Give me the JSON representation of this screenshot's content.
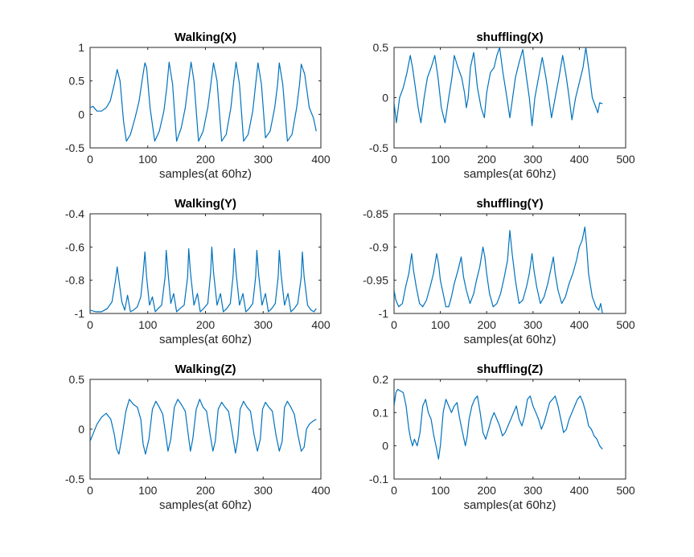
{
  "chart_data": [
    {
      "type": "line",
      "title": "Walking(X)",
      "xlabel": "samples(at 60hz)",
      "ylabel": "",
      "xlim": [
        0,
        400
      ],
      "ylim": [
        -0.5,
        1
      ],
      "xticks": [
        0,
        100,
        200,
        300,
        400
      ],
      "xtick_labels": [
        "0",
        "100",
        "200",
        "300",
        "400"
      ],
      "yticks": [
        1,
        0.5,
        0,
        -0.5
      ],
      "ytick_labels": [
        "1",
        "0.5",
        "0",
        "-0.5"
      ],
      "grid": false,
      "series": [
        {
          "color": "#0072BD",
          "x": [
            0,
            5,
            12,
            20,
            28,
            35,
            42,
            47,
            52,
            58,
            63,
            70,
            78,
            85,
            90,
            95,
            98,
            104,
            112,
            120,
            128,
            133,
            137,
            143,
            150,
            158,
            165,
            170,
            175,
            180,
            188,
            196,
            204,
            210,
            214,
            220,
            228,
            236,
            244,
            249,
            253,
            259,
            266,
            274,
            282,
            287,
            291,
            297,
            304,
            312,
            320,
            325,
            328,
            334,
            342,
            350,
            358,
            363,
            366,
            372,
            380,
            387,
            392
          ],
          "y": [
            0.1,
            0.12,
            0.05,
            0.05,
            0.1,
            0.2,
            0.45,
            0.67,
            0.5,
            -0.1,
            -0.4,
            -0.3,
            -0.05,
            0.2,
            0.5,
            0.77,
            0.7,
            0.1,
            -0.4,
            -0.25,
            0.05,
            0.4,
            0.78,
            0.45,
            -0.4,
            -0.2,
            0.1,
            0.45,
            0.78,
            0.5,
            -0.4,
            -0.25,
            0.1,
            0.5,
            0.77,
            0.5,
            -0.4,
            -0.3,
            0.1,
            0.5,
            0.78,
            0.45,
            -0.4,
            -0.3,
            0.05,
            0.45,
            0.77,
            0.45,
            -0.35,
            -0.25,
            0.1,
            0.45,
            0.77,
            0.45,
            -0.4,
            -0.3,
            0.1,
            0.45,
            0.75,
            0.6,
            0.1,
            -0.05,
            -0.25
          ]
        }
      ]
    },
    {
      "type": "line",
      "title": "shuffling(X)",
      "xlabel": "samples(at 60hz)",
      "ylabel": "",
      "xlim": [
        0,
        500
      ],
      "ylim": [
        -0.5,
        0.5
      ],
      "xticks": [
        0,
        100,
        200,
        300,
        400,
        500
      ],
      "xtick_labels": [
        "0",
        "100",
        "200",
        "300",
        "400",
        "500"
      ],
      "yticks": [
        0.5,
        0,
        -0.5
      ],
      "ytick_labels": [
        "0.5",
        "0",
        "-0.5"
      ],
      "grid": false,
      "series": [
        {
          "color": "#0072BD",
          "x": [
            0,
            5,
            12,
            20,
            28,
            35,
            40,
            46,
            52,
            58,
            65,
            72,
            80,
            88,
            95,
            102,
            110,
            118,
            125,
            130,
            138,
            146,
            152,
            156,
            160,
            165,
            172,
            180,
            188,
            195,
            200,
            208,
            216,
            222,
            228,
            235,
            242,
            250,
            256,
            262,
            270,
            278,
            286,
            292,
            298,
            304,
            312,
            320,
            328,
            334,
            340,
            348,
            356,
            364,
            372,
            378,
            384,
            392,
            400,
            408,
            414,
            420,
            428,
            436,
            440,
            444,
            450
          ],
          "y": [
            -0.05,
            -0.25,
            0,
            0.1,
            0.25,
            0.42,
            0.3,
            0.1,
            -0.1,
            -0.25,
            0.0,
            0.2,
            0.3,
            0.42,
            0.2,
            -0.1,
            -0.25,
            0.0,
            0.2,
            0.42,
            0.3,
            0.2,
            0.05,
            -0.1,
            0.0,
            0.3,
            0.45,
            0.1,
            -0.1,
            -0.2,
            0.05,
            0.25,
            0.3,
            0.42,
            0.5,
            0.25,
            0.05,
            -0.2,
            0.0,
            0.2,
            0.35,
            0.48,
            0.2,
            0.0,
            -0.28,
            0.0,
            0.2,
            0.4,
            0.2,
            0.0,
            -0.2,
            0.0,
            0.2,
            0.42,
            0.2,
            0.0,
            -0.22,
            0.0,
            0.15,
            0.3,
            0.5,
            0.3,
            0.0,
            -0.1,
            -0.15,
            -0.05,
            -0.06
          ]
        }
      ]
    },
    {
      "type": "line",
      "title": "Walking(Y)",
      "xlabel": "samples(at 60hz)",
      "ylabel": "",
      "xlim": [
        0,
        400
      ],
      "ylim": [
        -1,
        -0.4
      ],
      "xticks": [
        0,
        100,
        200,
        300,
        400
      ],
      "xtick_labels": [
        "0",
        "100",
        "200",
        "300",
        "400"
      ],
      "yticks": [
        -0.4,
        -0.6,
        -0.8,
        -1
      ],
      "ytick_labels": [
        "-0.4",
        "-0.6",
        "-0.8",
        "-1"
      ],
      "grid": false,
      "series": [
        {
          "color": "#0072BD",
          "x": [
            0,
            10,
            20,
            30,
            38,
            44,
            47,
            50,
            55,
            60,
            65,
            70,
            75,
            82,
            88,
            92,
            95,
            98,
            103,
            108,
            113,
            118,
            124,
            130,
            132,
            135,
            140,
            145,
            150,
            156,
            163,
            169,
            171,
            174,
            180,
            186,
            191,
            197,
            204,
            209,
            211,
            214,
            220,
            226,
            231,
            237,
            243,
            248,
            250,
            253,
            259,
            265,
            270,
            276,
            282,
            287,
            289,
            292,
            298,
            304,
            309,
            315,
            321,
            326,
            328,
            331,
            337,
            343,
            348,
            354,
            360,
            366,
            368,
            371,
            377,
            383,
            388,
            392
          ],
          "y": [
            -0.98,
            -0.99,
            -0.99,
            -0.97,
            -0.93,
            -0.8,
            -0.72,
            -0.8,
            -0.93,
            -0.98,
            -0.89,
            -0.99,
            -0.98,
            -0.96,
            -0.9,
            -0.76,
            -0.63,
            -0.78,
            -0.95,
            -0.9,
            -0.99,
            -0.97,
            -0.95,
            -0.78,
            -0.62,
            -0.75,
            -0.94,
            -0.88,
            -0.99,
            -0.97,
            -0.95,
            -0.78,
            -0.61,
            -0.75,
            -0.95,
            -0.88,
            -0.99,
            -0.97,
            -0.94,
            -0.75,
            -0.6,
            -0.75,
            -0.95,
            -0.88,
            -0.99,
            -0.97,
            -0.94,
            -0.77,
            -0.61,
            -0.75,
            -0.95,
            -0.88,
            -0.99,
            -0.97,
            -0.94,
            -0.78,
            -0.62,
            -0.76,
            -0.95,
            -0.88,
            -0.99,
            -0.97,
            -0.94,
            -0.78,
            -0.62,
            -0.76,
            -0.95,
            -0.88,
            -0.99,
            -0.97,
            -0.94,
            -0.78,
            -0.63,
            -0.78,
            -0.95,
            -0.98,
            -0.99,
            -0.97
          ]
        }
      ]
    },
    {
      "type": "line",
      "title": "shuffling(Y)",
      "xlabel": "samples(at 60hz)",
      "ylabel": "",
      "xlim": [
        0,
        500
      ],
      "ylim": [
        -1,
        -0.85
      ],
      "xticks": [
        0,
        100,
        200,
        300,
        400,
        500
      ],
      "xtick_labels": [
        "0",
        "100",
        "200",
        "300",
        "400",
        "500"
      ],
      "yticks": [
        -0.85,
        -0.9,
        -0.95,
        -1
      ],
      "ytick_labels": [
        "-0.85",
        "-0.9",
        "-0.95",
        "-1"
      ],
      "grid": false,
      "series": [
        {
          "color": "#0072BD",
          "x": [
            0,
            4,
            10,
            18,
            25,
            32,
            38,
            42,
            48,
            55,
            62,
            70,
            78,
            85,
            92,
            96,
            100,
            106,
            112,
            118,
            124,
            130,
            138,
            145,
            150,
            156,
            164,
            172,
            178,
            185,
            192,
            196,
            200,
            206,
            214,
            222,
            230,
            238,
            245,
            250,
            255,
            262,
            270,
            278,
            286,
            292,
            298,
            302,
            308,
            316,
            324,
            332,
            338,
            344,
            348,
            354,
            362,
            370,
            378,
            386,
            394,
            400,
            406,
            412,
            416,
            420,
            428,
            436,
            442,
            446,
            450
          ],
          "y": [
            -0.965,
            -0.98,
            -0.99,
            -0.985,
            -0.96,
            -0.94,
            -0.91,
            -0.935,
            -0.96,
            -0.985,
            -0.99,
            -0.98,
            -0.96,
            -0.94,
            -0.91,
            -0.925,
            -0.95,
            -0.97,
            -0.99,
            -0.99,
            -0.975,
            -0.955,
            -0.935,
            -0.915,
            -0.945,
            -0.965,
            -0.985,
            -0.97,
            -0.95,
            -0.93,
            -0.9,
            -0.915,
            -0.94,
            -0.97,
            -0.99,
            -0.985,
            -0.97,
            -0.945,
            -0.92,
            -0.875,
            -0.91,
            -0.95,
            -0.985,
            -0.98,
            -0.96,
            -0.94,
            -0.91,
            -0.935,
            -0.96,
            -0.985,
            -0.975,
            -0.955,
            -0.935,
            -0.915,
            -0.94,
            -0.965,
            -0.985,
            -0.975,
            -0.955,
            -0.94,
            -0.92,
            -0.9,
            -0.89,
            -0.87,
            -0.9,
            -0.94,
            -0.975,
            -0.99,
            -0.995,
            -0.985,
            -1.0
          ]
        }
      ]
    },
    {
      "type": "line",
      "title": "Walking(Z)",
      "xlabel": "samples(at 60hz)",
      "ylabel": "",
      "xlim": [
        0,
        400
      ],
      "ylim": [
        -0.5,
        0.5
      ],
      "xticks": [
        0,
        100,
        200,
        300,
        400
      ],
      "xtick_labels": [
        "0",
        "100",
        "200",
        "300",
        "400"
      ],
      "yticks": [
        0.5,
        0,
        -0.5
      ],
      "ytick_labels": [
        "0.5",
        "0",
        "-0.5"
      ],
      "grid": false,
      "series": [
        {
          "color": "#0072BD",
          "x": [
            0,
            5,
            12,
            20,
            28,
            36,
            42,
            46,
            50,
            56,
            62,
            68,
            75,
            82,
            88,
            92,
            96,
            102,
            108,
            114,
            120,
            126,
            131,
            135,
            140,
            146,
            152,
            158,
            165,
            170,
            174,
            178,
            184,
            190,
            196,
            202,
            208,
            213,
            217,
            222,
            228,
            234,
            240,
            246,
            252,
            256,
            260,
            266,
            272,
            278,
            284,
            290,
            295,
            299,
            304,
            310,
            316,
            322,
            328,
            333,
            337,
            342,
            348,
            354,
            360,
            366,
            371,
            375,
            380,
            386,
            392
          ],
          "y": [
            -0.12,
            -0.05,
            0.05,
            0.12,
            0.16,
            0.1,
            -0.05,
            -0.2,
            -0.25,
            -0.05,
            0.18,
            0.3,
            0.25,
            0.22,
            0.1,
            -0.15,
            -0.25,
            -0.1,
            0.2,
            0.28,
            0.22,
            0.15,
            -0.05,
            -0.22,
            -0.1,
            0.22,
            0.3,
            0.25,
            0.18,
            -0.05,
            -0.22,
            -0.1,
            0.2,
            0.3,
            0.22,
            0.18,
            -0.05,
            -0.22,
            -0.12,
            0.2,
            0.27,
            0.22,
            0.18,
            -0.02,
            -0.24,
            -0.1,
            0.2,
            0.28,
            0.22,
            0.18,
            -0.05,
            -0.22,
            -0.1,
            0.2,
            0.27,
            0.22,
            0.18,
            -0.05,
            -0.22,
            -0.12,
            0.22,
            0.28,
            0.22,
            0.15,
            -0.05,
            -0.22,
            -0.18,
            0.0,
            0.05,
            0.08,
            0.1
          ]
        }
      ]
    },
    {
      "type": "line",
      "title": "shuffling(Z)",
      "xlabel": "samples(at 60hz)",
      "ylabel": "",
      "xlim": [
        0,
        500
      ],
      "ylim": [
        -0.1,
        0.2
      ],
      "xticks": [
        0,
        100,
        200,
        300,
        400,
        500
      ],
      "xtick_labels": [
        "0",
        "100",
        "200",
        "300",
        "400",
        "500"
      ],
      "yticks": [
        0.2,
        0.1,
        0,
        -0.1
      ],
      "ytick_labels": [
        "0.2",
        "0.1",
        "0",
        "-0.1"
      ],
      "grid": false,
      "series": [
        {
          "color": "#0072BD",
          "x": [
            0,
            4,
            8,
            14,
            20,
            26,
            32,
            36,
            40,
            44,
            50,
            56,
            62,
            68,
            74,
            80,
            86,
            92,
            96,
            100,
            106,
            112,
            118,
            124,
            130,
            136,
            142,
            148,
            154,
            158,
            162,
            168,
            174,
            180,
            186,
            192,
            198,
            204,
            210,
            216,
            222,
            228,
            234,
            240,
            246,
            252,
            258,
            264,
            270,
            276,
            282,
            288,
            294,
            300,
            306,
            312,
            318,
            324,
            330,
            336,
            342,
            348,
            354,
            360,
            366,
            372,
            378,
            384,
            390,
            396,
            402,
            408,
            414,
            420,
            426,
            432,
            438,
            444,
            450
          ],
          "y": [
            0.12,
            0.16,
            0.17,
            0.165,
            0.16,
            0.12,
            0.05,
            0.02,
            0.0,
            0.02,
            0.0,
            0.04,
            0.12,
            0.14,
            0.1,
            0.08,
            0.03,
            -0.01,
            -0.04,
            0.0,
            0.1,
            0.14,
            0.12,
            0.1,
            0.12,
            0.13,
            0.08,
            0.04,
            0.0,
            0.03,
            0.08,
            0.12,
            0.14,
            0.15,
            0.1,
            0.04,
            0.02,
            0.05,
            0.08,
            0.1,
            0.08,
            0.06,
            0.03,
            0.04,
            0.06,
            0.08,
            0.1,
            0.12,
            0.08,
            0.06,
            0.09,
            0.14,
            0.15,
            0.12,
            0.1,
            0.08,
            0.05,
            0.07,
            0.1,
            0.13,
            0.14,
            0.15,
            0.12,
            0.08,
            0.04,
            0.05,
            0.08,
            0.1,
            0.12,
            0.14,
            0.15,
            0.13,
            0.1,
            0.06,
            0.05,
            0.03,
            0.02,
            0.0,
            -0.01
          ]
        }
      ]
    }
  ]
}
